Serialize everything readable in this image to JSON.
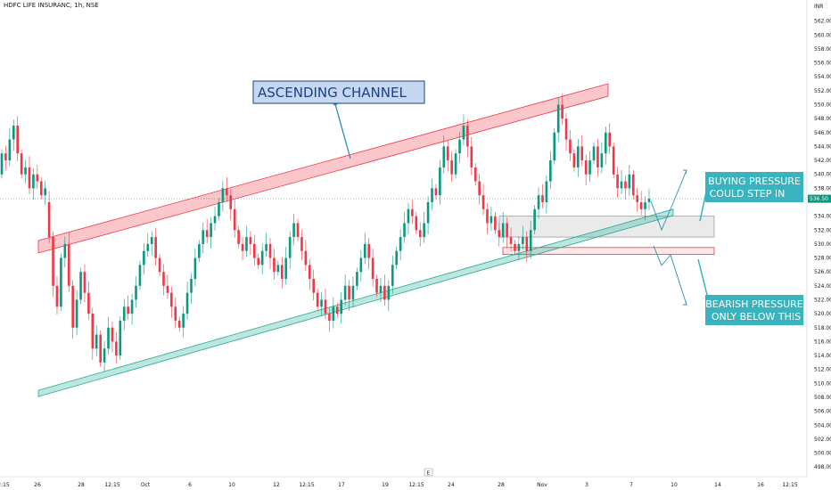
{
  "header": {
    "symbol": "HDFC LIFE INSURANC, 1h, NSE"
  },
  "currency": "INR",
  "last_price_label": "536.50",
  "expand_icon_label": "E",
  "chart_data": {
    "type": "candlestick",
    "title": "HDFC LIFE INSURANC, 1h, NSE",
    "y_range": [
      497,
      564
    ],
    "y_ticks": [
      "562.00",
      "560.00",
      "558.00",
      "556.00",
      "554.00",
      "552.00",
      "550.00",
      "548.00",
      "546.00",
      "544.00",
      "542.00",
      "540.00",
      "538.00",
      "534.00",
      "532.00",
      "530.00",
      "528.00",
      "526.00",
      "524.00",
      "522.00",
      "520.00",
      "518.00",
      "516.00",
      "514.00",
      "512.00",
      "510.00",
      "508.00",
      "506.00",
      "504.00",
      "502.00",
      "500.00",
      "498.00"
    ],
    "x_ticks": [
      "2:15",
      "26",
      "28",
      "12:15",
      "Oct",
      "6",
      "10",
      "12",
      "12:15",
      "17",
      "19",
      "12:15",
      "24",
      "28",
      "Nov",
      "3",
      "7",
      "10",
      "14",
      "16",
      "12:15"
    ],
    "current_price": 536.5,
    "candles": [
      [
        540,
        543
      ],
      [
        543,
        542
      ],
      [
        542,
        545
      ],
      [
        545,
        547
      ],
      [
        547,
        543
      ],
      [
        543,
        540
      ],
      [
        540,
        541
      ],
      [
        541,
        538
      ],
      [
        538,
        540
      ],
      [
        540,
        539
      ],
      [
        539,
        537
      ],
      [
        537,
        538
      ],
      [
        536,
        531
      ],
      [
        531,
        524
      ],
      [
        524,
        521
      ],
      [
        521,
        528
      ],
      [
        528,
        530
      ],
      [
        530,
        524
      ],
      [
        524,
        518
      ],
      [
        518,
        522
      ],
      [
        522,
        526
      ],
      [
        526,
        523
      ],
      [
        523,
        520
      ],
      [
        520,
        515
      ],
      [
        515,
        517
      ],
      [
        517,
        513
      ],
      [
        513,
        515
      ],
      [
        515,
        518
      ],
      [
        518,
        516
      ],
      [
        516,
        514
      ],
      [
        514,
        519
      ],
      [
        519,
        521
      ],
      [
        521,
        520
      ],
      [
        520,
        522
      ],
      [
        522,
        524
      ],
      [
        524,
        527
      ],
      [
        527,
        529
      ],
      [
        529,
        530
      ],
      [
        530,
        531
      ],
      [
        531,
        528
      ],
      [
        528,
        526
      ],
      [
        526,
        524
      ],
      [
        524,
        523
      ],
      [
        523,
        521
      ],
      [
        521,
        519
      ],
      [
        519,
        518
      ],
      [
        518,
        520
      ],
      [
        520,
        523
      ],
      [
        523,
        525
      ],
      [
        525,
        528
      ],
      [
        528,
        530
      ],
      [
        530,
        532
      ],
      [
        532,
        531
      ],
      [
        531,
        533
      ],
      [
        533,
        534
      ],
      [
        534,
        536
      ],
      [
        536,
        538
      ],
      [
        538,
        537
      ],
      [
        537,
        535
      ],
      [
        535,
        532
      ],
      [
        532,
        530
      ],
      [
        530,
        529
      ],
      [
        529,
        531
      ],
      [
        531,
        530
      ],
      [
        530,
        528
      ],
      [
        528,
        527
      ],
      [
        527,
        529
      ],
      [
        529,
        530
      ],
      [
        530,
        528
      ],
      [
        528,
        526
      ],
      [
        526,
        527
      ],
      [
        527,
        525
      ],
      [
        525,
        528
      ],
      [
        528,
        531
      ],
      [
        531,
        533
      ],
      [
        533,
        531
      ],
      [
        531,
        529
      ],
      [
        529,
        527
      ],
      [
        527,
        525
      ],
      [
        525,
        523
      ],
      [
        523,
        521
      ],
      [
        521,
        522
      ],
      [
        522,
        520
      ],
      [
        520,
        519
      ],
      [
        519,
        521
      ],
      [
        521,
        520
      ],
      [
        520,
        522
      ],
      [
        522,
        524
      ],
      [
        524,
        522
      ],
      [
        522,
        524
      ],
      [
        524,
        526
      ],
      [
        526,
        528
      ],
      [
        528,
        530
      ],
      [
        530,
        528
      ],
      [
        528,
        525
      ],
      [
        525,
        523
      ],
      [
        523,
        524
      ],
      [
        524,
        522
      ],
      [
        522,
        524
      ],
      [
        524,
        527
      ],
      [
        527,
        529
      ],
      [
        529,
        531
      ],
      [
        531,
        533
      ],
      [
        533,
        535
      ],
      [
        535,
        534
      ],
      [
        534,
        532
      ],
      [
        532,
        531
      ],
      [
        531,
        533
      ],
      [
        533,
        536
      ],
      [
        536,
        538
      ],
      [
        538,
        537
      ],
      [
        537,
        541
      ],
      [
        541,
        544
      ],
      [
        544,
        542
      ],
      [
        542,
        540
      ],
      [
        540,
        543
      ],
      [
        543,
        545
      ],
      [
        545,
        547
      ],
      [
        547,
        544
      ],
      [
        544,
        541
      ],
      [
        541,
        539
      ],
      [
        539,
        537
      ],
      [
        537,
        535
      ],
      [
        535,
        533
      ],
      [
        533,
        534
      ],
      [
        534,
        532
      ],
      [
        532,
        531
      ],
      [
        531,
        533
      ],
      [
        533,
        531
      ],
      [
        531,
        530
      ],
      [
        530,
        529
      ],
      [
        529,
        530
      ],
      [
        530,
        531
      ],
      [
        531,
        529
      ],
      [
        529,
        532
      ],
      [
        532,
        535
      ],
      [
        535,
        537
      ],
      [
        537,
        536
      ],
      [
        536,
        539
      ],
      [
        539,
        542
      ],
      [
        542,
        546
      ],
      [
        546,
        550
      ],
      [
        550,
        548
      ],
      [
        548,
        545
      ],
      [
        545,
        543
      ],
      [
        543,
        541
      ],
      [
        541,
        544
      ],
      [
        544,
        542
      ],
      [
        542,
        540
      ],
      [
        540,
        542
      ],
      [
        542,
        544
      ],
      [
        544,
        541
      ],
      [
        541,
        543
      ],
      [
        543,
        546
      ],
      [
        546,
        544
      ],
      [
        544,
        540
      ],
      [
        540,
        538
      ],
      [
        538,
        539
      ],
      [
        539,
        538
      ],
      [
        538,
        540
      ],
      [
        540,
        537
      ],
      [
        537,
        536
      ],
      [
        536,
        535
      ],
      [
        535,
        536
      ],
      [
        536,
        536.5
      ]
    ],
    "channel": {
      "upper": {
        "start": 530.5,
        "end": 553
      },
      "lower": {
        "start": 509,
        "end": 535
      }
    },
    "zones": [
      {
        "name": "resistance",
        "low": 531,
        "high": 534,
        "color": "#9e9e9e"
      },
      {
        "name": "support",
        "low": 528.5,
        "high": 529.5,
        "color": "#f23645"
      }
    ],
    "colors": {
      "up": "#089981",
      "down": "#f23645",
      "upper_channel": "#f23645",
      "lower_channel": "#22ab94"
    }
  },
  "annotations": {
    "channel_label": "ASCENDING CHANNEL",
    "buying_line1": "BUYING PRESSURE",
    "buying_line2": "COULD STEP IN",
    "bearish_line1": "BEARISH PRESSURE",
    "bearish_line2": "ONLY BELOW THIS"
  }
}
